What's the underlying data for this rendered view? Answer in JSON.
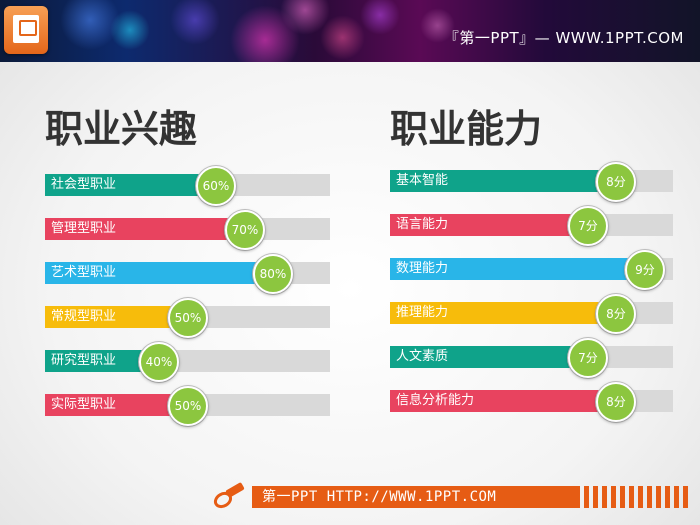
{
  "header": {
    "title": "『第一PPT』— WWW.1PPT.COM"
  },
  "left_section": {
    "heading": "职业兴趣",
    "items": [
      {
        "label": "社会型职业",
        "value": "60%",
        "fraction": 0.6,
        "color": "#0fa38a"
      },
      {
        "label": "管理型职业",
        "value": "70%",
        "fraction": 0.7,
        "color": "#e8435f"
      },
      {
        "label": "艺术型职业",
        "value": "80%",
        "fraction": 0.8,
        "color": "#29b5e8"
      },
      {
        "label": "常规型职业",
        "value": "50%",
        "fraction": 0.5,
        "color": "#f7bc0b"
      },
      {
        "label": "研究型职业",
        "value": "40%",
        "fraction": 0.4,
        "color": "#0fa38a"
      },
      {
        "label": "实际型职业",
        "value": "50%",
        "fraction": 0.5,
        "color": "#e8435f"
      }
    ]
  },
  "right_section": {
    "heading": "职业能力",
    "items": [
      {
        "label": "基本智能",
        "value": "8分",
        "score": 8,
        "color": "#0fa38a"
      },
      {
        "label": "语言能力",
        "value": "7分",
        "score": 7,
        "color": "#e8435f"
      },
      {
        "label": "数理能力",
        "value": "9分",
        "score": 9,
        "color": "#29b5e8"
      },
      {
        "label": "推理能力",
        "value": "8分",
        "score": 8,
        "color": "#f7bc0b"
      },
      {
        "label": "人文素质",
        "value": "7分",
        "score": 7,
        "color": "#0fa38a"
      },
      {
        "label": "信息分析能力",
        "value": "8分",
        "score": 8,
        "color": "#e8435f"
      }
    ]
  },
  "footer": {
    "text": "第一PPT HTTP://WWW.1PPT.COM",
    "color": "#e65c14"
  }
}
